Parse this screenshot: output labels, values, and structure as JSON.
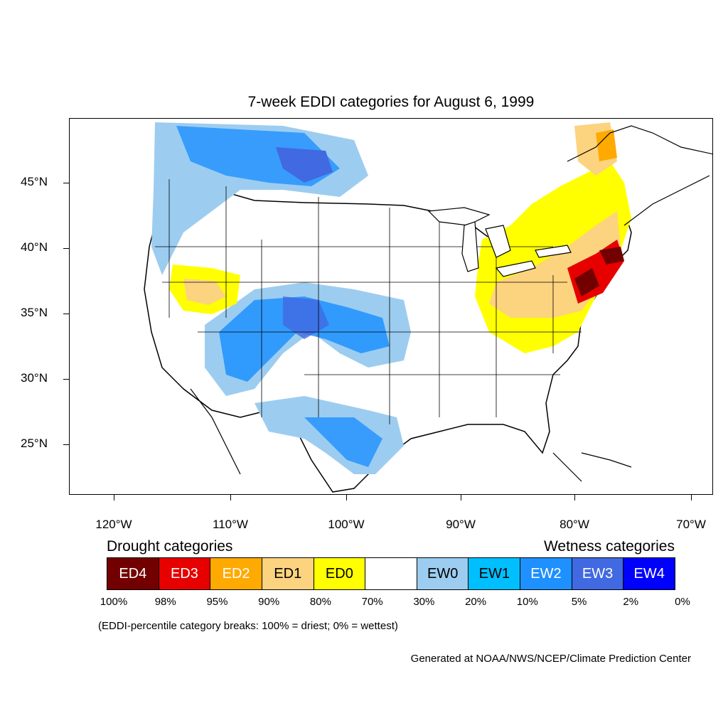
{
  "title": "7-week EDDI categories for August 6, 1999",
  "lat_labels": [
    "45°N",
    "40°N",
    "35°N",
    "30°N",
    "25°N"
  ],
  "lon_labels": [
    "120°W",
    "110°W",
    "100°W",
    "90°W",
    "80°W",
    "70°W"
  ],
  "legend": {
    "drought_title": "Drought categories",
    "wetness_title": "Wetness categories",
    "categories": [
      {
        "label": "ED4",
        "color": "#730000",
        "text_color": "#ffffff"
      },
      {
        "label": "ED3",
        "color": "#e60000",
        "text_color": "#ffffff"
      },
      {
        "label": "ED2",
        "color": "#ffaa00",
        "text_color": "#ffffff"
      },
      {
        "label": "ED1",
        "color": "#fcd37f",
        "text_color": "#000000"
      },
      {
        "label": "ED0",
        "color": "#ffff00",
        "text_color": "#000000"
      },
      {
        "label": "",
        "color": "#ffffff",
        "text_color": "#000000"
      },
      {
        "label": "EW0",
        "color": "#9ccdf0",
        "text_color": "#000000"
      },
      {
        "label": "EW1",
        "color": "#00bfff",
        "text_color": "#000000"
      },
      {
        "label": "EW2",
        "color": "#1e90ff",
        "text_color": "#ffffff"
      },
      {
        "label": "EW3",
        "color": "#4169e1",
        "text_color": "#ffffff"
      },
      {
        "label": "EW4",
        "color": "#0000ff",
        "text_color": "#ffffff"
      }
    ],
    "breaks": [
      "100%",
      "98%",
      "95%",
      "90%",
      "80%",
      "70%",
      "30%",
      "20%",
      "10%",
      "5%",
      "2%",
      "0%"
    ]
  },
  "note": "(EDDI-percentile category breaks: 100% = driest; 0% = wettest)",
  "credit": "Generated at NOAA/NWS/NCEP/Climate Prediction Center"
}
